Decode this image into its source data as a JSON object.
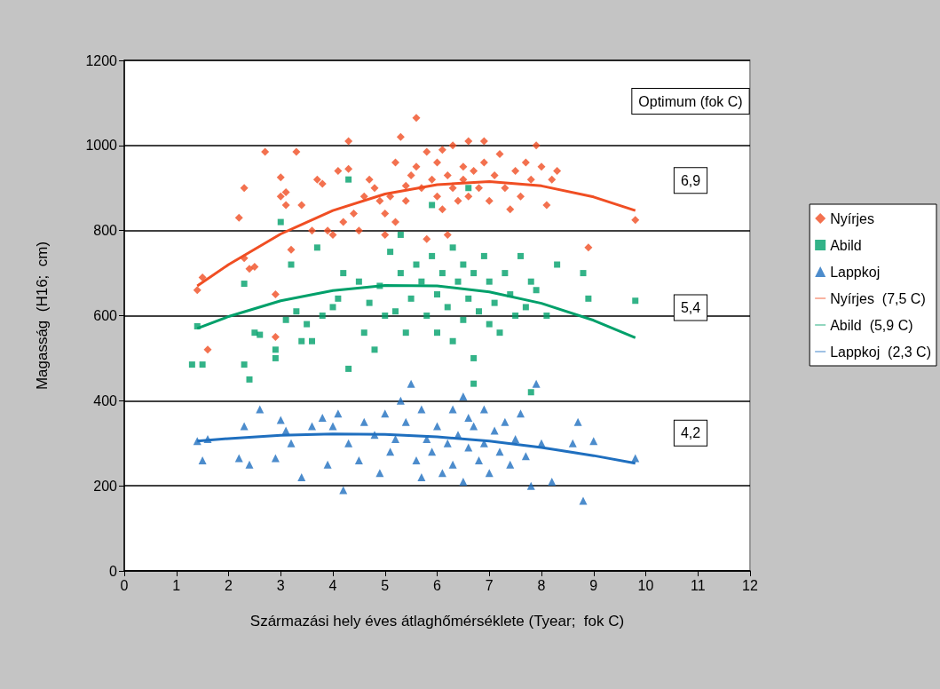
{
  "chart_data": {
    "type": "scatter",
    "xlabel": "Származási hely éves átlaghőmérséklete (Tyear;  fok C)",
    "ylabel": "Magasság  (H16;  cm)",
    "xlim": [
      0,
      12
    ],
    "xticks": [
      0,
      1,
      2,
      3,
      4,
      5,
      6,
      7,
      8,
      9,
      10,
      11,
      12
    ],
    "ylim": [
      0,
      1200
    ],
    "yticks": [
      0,
      200,
      400,
      600,
      800,
      1000,
      1200
    ],
    "grid": "y",
    "legend": "right",
    "annotations": [
      "Optimum (fok C)",
      "6,9",
      "5,4",
      "4,2"
    ],
    "series": [
      {
        "name": "Nyírjes",
        "marker": "diamond",
        "color": "#f04e23",
        "x": [
          1.4,
          1.5,
          1.6,
          2.2,
          2.3,
          2.3,
          2.4,
          2.5,
          2.7,
          2.9,
          2.9,
          3.0,
          3.0,
          3.1,
          3.1,
          3.2,
          3.3,
          3.4,
          3.6,
          3.7,
          3.8,
          3.9,
          4.0,
          4.1,
          4.2,
          4.3,
          4.3,
          4.4,
          4.5,
          4.6,
          4.7,
          4.8,
          4.9,
          5.0,
          5.1,
          5.2,
          5.3,
          5.4,
          5.4,
          5.5,
          5.6,
          5.6,
          5.7,
          5.8,
          5.9,
          6.0,
          6.0,
          6.1,
          6.1,
          6.2,
          6.3,
          6.3,
          6.4,
          6.5,
          6.5,
          6.6,
          6.6,
          6.7,
          6.8,
          6.9,
          6.9,
          7.0,
          7.1,
          7.2,
          7.3,
          7.4,
          7.5,
          7.6,
          7.7,
          7.8,
          7.9,
          8.0,
          8.1,
          8.2,
          8.3,
          8.9,
          9.8,
          5.8,
          6.2,
          5.2,
          5.0
        ],
        "values": [
          660,
          690,
          520,
          830,
          900,
          735,
          710,
          715,
          985,
          550,
          650,
          925,
          880,
          860,
          890,
          755,
          985,
          860,
          800,
          920,
          910,
          800,
          790,
          940,
          820,
          1010,
          945,
          840,
          800,
          880,
          920,
          900,
          870,
          840,
          880,
          960,
          1020,
          905,
          870,
          930,
          1065,
          950,
          900,
          985,
          920,
          880,
          960,
          990,
          850,
          930,
          1000,
          900,
          870,
          950,
          920,
          1010,
          880,
          940,
          900,
          1010,
          960,
          870,
          930,
          980,
          900,
          850,
          940,
          880,
          960,
          920,
          1000,
          950,
          860,
          920,
          940,
          760,
          825,
          780,
          790,
          820,
          790
        ]
      },
      {
        "name": "Abild",
        "marker": "square",
        "color": "#00a06a",
        "x": [
          1.3,
          1.4,
          1.5,
          2.3,
          2.3,
          2.4,
          2.5,
          2.6,
          2.9,
          2.9,
          3.0,
          3.1,
          3.2,
          3.3,
          3.4,
          3.5,
          3.6,
          3.7,
          3.8,
          4.0,
          4.1,
          4.2,
          4.3,
          4.3,
          4.5,
          4.6,
          4.7,
          4.8,
          4.9,
          5.0,
          5.1,
          5.2,
          5.3,
          5.3,
          5.4,
          5.5,
          5.6,
          5.7,
          5.8,
          5.9,
          6.0,
          6.0,
          6.1,
          6.2,
          6.3,
          6.3,
          6.4,
          6.5,
          6.5,
          6.6,
          6.7,
          6.7,
          6.8,
          6.9,
          7.0,
          7.0,
          7.1,
          7.2,
          7.3,
          7.4,
          7.5,
          7.6,
          7.7,
          7.8,
          7.8,
          7.9,
          8.1,
          8.3,
          8.8,
          8.9,
          9.8,
          6.7,
          5.9,
          6.6
        ],
        "values": [
          485,
          575,
          485,
          485,
          675,
          450,
          560,
          555,
          500,
          520,
          820,
          590,
          720,
          610,
          540,
          580,
          540,
          760,
          600,
          620,
          640,
          700,
          475,
          920,
          680,
          560,
          630,
          520,
          670,
          600,
          750,
          610,
          700,
          790,
          560,
          640,
          720,
          680,
          600,
          740,
          560,
          650,
          700,
          620,
          760,
          540,
          680,
          590,
          720,
          640,
          500,
          700,
          610,
          740,
          580,
          680,
          630,
          560,
          700,
          650,
          600,
          740,
          620,
          420,
          680,
          660,
          600,
          720,
          700,
          640,
          635,
          440,
          860,
          900
        ]
      },
      {
        "name": "Lappkoj",
        "marker": "triangle",
        "color": "#1f6fbf",
        "x": [
          1.4,
          1.5,
          1.6,
          2.2,
          2.3,
          2.4,
          2.6,
          2.9,
          3.0,
          3.1,
          3.2,
          3.4,
          3.6,
          3.8,
          3.9,
          4.0,
          4.1,
          4.2,
          4.3,
          4.5,
          4.6,
          4.8,
          4.9,
          5.0,
          5.1,
          5.2,
          5.3,
          5.4,
          5.5,
          5.6,
          5.7,
          5.8,
          5.9,
          6.0,
          6.1,
          6.2,
          6.3,
          6.3,
          6.4,
          6.5,
          6.5,
          6.6,
          6.7,
          6.8,
          6.9,
          6.9,
          7.0,
          7.1,
          7.2,
          7.3,
          7.4,
          7.5,
          7.6,
          7.7,
          7.8,
          7.9,
          8.0,
          8.2,
          8.6,
          8.7,
          8.8,
          9.0,
          9.8,
          5.7,
          6.6
        ],
        "values": [
          305,
          260,
          310,
          265,
          340,
          250,
          380,
          265,
          355,
          330,
          300,
          220,
          340,
          360,
          250,
          340,
          370,
          190,
          300,
          260,
          350,
          320,
          230,
          370,
          280,
          310,
          400,
          350,
          440,
          260,
          380,
          310,
          280,
          340,
          230,
          300,
          380,
          250,
          320,
          410,
          210,
          290,
          340,
          260,
          380,
          300,
          230,
          330,
          280,
          350,
          250,
          310,
          370,
          270,
          200,
          440,
          300,
          210,
          300,
          350,
          165,
          305,
          265,
          220,
          360
        ]
      },
      {
        "name": "Nyírjes  (7,5 C)",
        "type": "line",
        "marker": "none",
        "color": "#f04e23",
        "x": [
          1.4,
          2,
          3,
          4,
          5,
          6,
          7,
          8,
          9,
          9.8
        ],
        "values": [
          670,
          720,
          792,
          847,
          886,
          908,
          915,
          905,
          879,
          847
        ]
      },
      {
        "name": "Abild  (5,9 C)",
        "type": "line",
        "marker": "none",
        "color": "#00a06a",
        "x": [
          1.4,
          2,
          3,
          4,
          5,
          6,
          7,
          8,
          9,
          9.8
        ],
        "values": [
          570,
          598,
          635,
          659,
          671,
          670,
          656,
          629,
          589,
          548
        ]
      },
      {
        "name": "Lappkoj  (2,3 C)",
        "type": "line",
        "marker": "none",
        "color": "#1f6fbf",
        "x": [
          1.4,
          2,
          3,
          4,
          5,
          6,
          7,
          8,
          9,
          9.8
        ],
        "values": [
          305,
          311,
          319,
          322,
          321,
          315,
          305,
          290,
          271,
          253
        ]
      }
    ]
  }
}
